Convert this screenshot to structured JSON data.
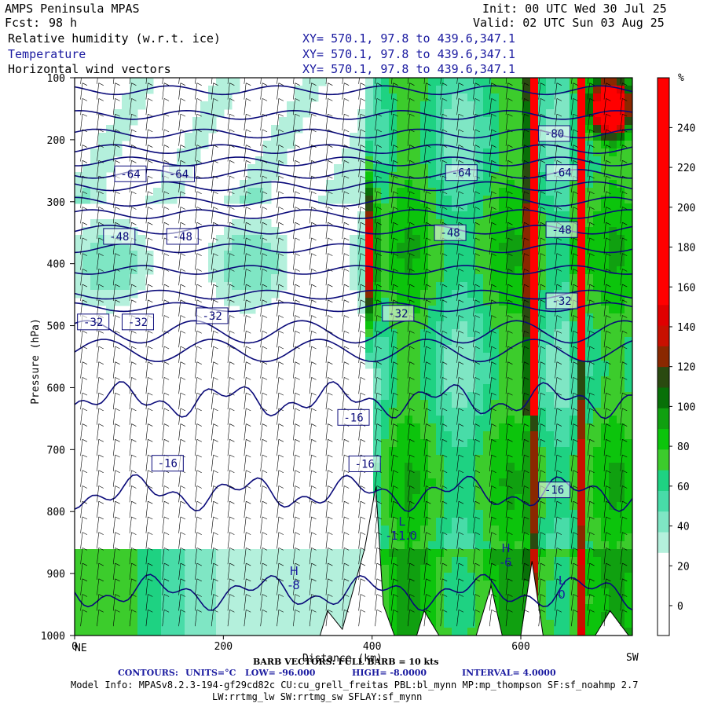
{
  "header": {
    "model": "AMPS Peninsula MPAS",
    "fcst_label": "Fcst:",
    "fcst_value": "98 h",
    "init": "Init: 00 UTC Wed 30 Jul 25",
    "valid": "Valid: 02 UTC Sun 03 Aug 25",
    "fields": [
      {
        "name": "Relative humidity (w.r.t. ice)",
        "xy": "XY= 570.1, 97.8 to 439.6,347.1"
      },
      {
        "name": "Temperature",
        "xy": "XY= 570.1, 97.8 to 439.6,347.1"
      },
      {
        "name": "Horizontal wind vectors",
        "xy": "XY= 570.1, 97.8 to 439.6,347.1"
      }
    ]
  },
  "chart_data": {
    "type": "heatmap",
    "title": "Relative humidity (w.r.t. ice) / Temperature / Horizontal wind vectors",
    "ylabel": "Pressure (hPa)",
    "xlabel": "Distance (km)",
    "x_ticks": [
      0,
      200,
      400,
      600
    ],
    "x_end_labels": {
      "left": "NE",
      "right": "SW"
    },
    "y_ticks": [
      100,
      200,
      300,
      400,
      500,
      600,
      700,
      800,
      900,
      1000
    ],
    "xlim": [
      0,
      750
    ],
    "ylim": [
      1000,
      100
    ],
    "colorbar": {
      "unit": "%",
      "levels": [
        -10,
        0,
        10,
        20,
        30,
        40,
        50,
        60,
        70,
        80,
        90,
        100,
        110,
        120,
        130,
        140,
        150,
        160,
        170,
        180,
        190,
        200,
        210,
        220,
        230,
        240,
        250,
        260
      ],
      "tick_labels": [
        0,
        20,
        40,
        60,
        80,
        100,
        120,
        140,
        160,
        180,
        200,
        220,
        240
      ],
      "colors": [
        "#ffffff",
        "#ffffff",
        "#ffffff",
        "#ffffff",
        "#b4f0dc",
        "#7fe6c4",
        "#48dca8",
        "#1ed282",
        "#3ccc2c",
        "#0cc40c",
        "#10a010",
        "#087008",
        "#2a4a10",
        "#8a2800",
        "#c81000",
        "#e00000",
        "#ff0000",
        "#ff0000",
        "#ff0000",
        "#ff0000",
        "#ff0000",
        "#ff0000",
        "#ff0000",
        "#ff0000",
        "#ff0000",
        "#ff0000",
        "#ff0000"
      ]
    },
    "temperature_contours": {
      "units": "°C",
      "low": -96.0,
      "high": -8.0,
      "interval": 4.0,
      "labels": [
        {
          "value": "-64",
          "x": 75,
          "p": 255
        },
        {
          "value": "-64",
          "x": 140,
          "p": 255
        },
        {
          "value": "-64",
          "x": 520,
          "p": 253
        },
        {
          "value": "-64",
          "x": 655,
          "p": 253
        },
        {
          "value": "-80",
          "x": 645,
          "p": 190
        },
        {
          "value": "-48",
          "x": 60,
          "p": 356
        },
        {
          "value": "-48",
          "x": 145,
          "p": 356
        },
        {
          "value": "-48",
          "x": 505,
          "p": 350
        },
        {
          "value": "-48",
          "x": 655,
          "p": 345
        },
        {
          "value": "-32",
          "x": 25,
          "p": 494
        },
        {
          "value": "-32",
          "x": 85,
          "p": 494
        },
        {
          "value": "-32",
          "x": 185,
          "p": 484
        },
        {
          "value": "-32",
          "x": 435,
          "p": 480
        },
        {
          "value": "-32",
          "x": 655,
          "p": 460
        },
        {
          "value": "-16",
          "x": 375,
          "p": 648
        },
        {
          "value": "-16",
          "x": 125,
          "p": 722
        },
        {
          "value": "-16",
          "x": 390,
          "p": 723
        },
        {
          "value": "-16",
          "x": 645,
          "p": 765
        }
      ],
      "extrema": [
        {
          "type": "H",
          "value": "-8",
          "x": 295,
          "p": 915
        },
        {
          "type": "L",
          "value": "-11.0",
          "x": 440,
          "p": 835
        },
        {
          "type": "H",
          "value": "-6",
          "x": 580,
          "p": 878
        },
        {
          "type": "L",
          "value": "0",
          "x": 655,
          "p": 930
        }
      ],
      "isotherms_p_at_left": [
        930,
        770,
        620,
        540,
        510,
        470,
        450,
        410,
        375,
        345,
        320,
        300,
        275,
        255,
        235,
        215,
        190,
        160,
        120
      ]
    },
    "rh_field_note": "cross-section shaded by RH w.r.t. ice"
  },
  "barb_note": "BARB VECTORS: FULL BARB = 10 kts",
  "contours_line": {
    "label": "CONTOURS:",
    "units": "UNITS=°C",
    "low": "LOW= -96.000",
    "high": "HIGH= -8.0000",
    "interval": "INTERVAL= 4.0000"
  },
  "model_info": "Model Info: MPASv8.2.3-194-gf29cd82c CU:cu_grell_freitas PBL:bl_mynn MP:mp_thompson SF:sf_noahmp 2.7",
  "model_info2": "LW:rrtmg_lw SW:rrtmg_sw SFLAY:sf_mynn"
}
